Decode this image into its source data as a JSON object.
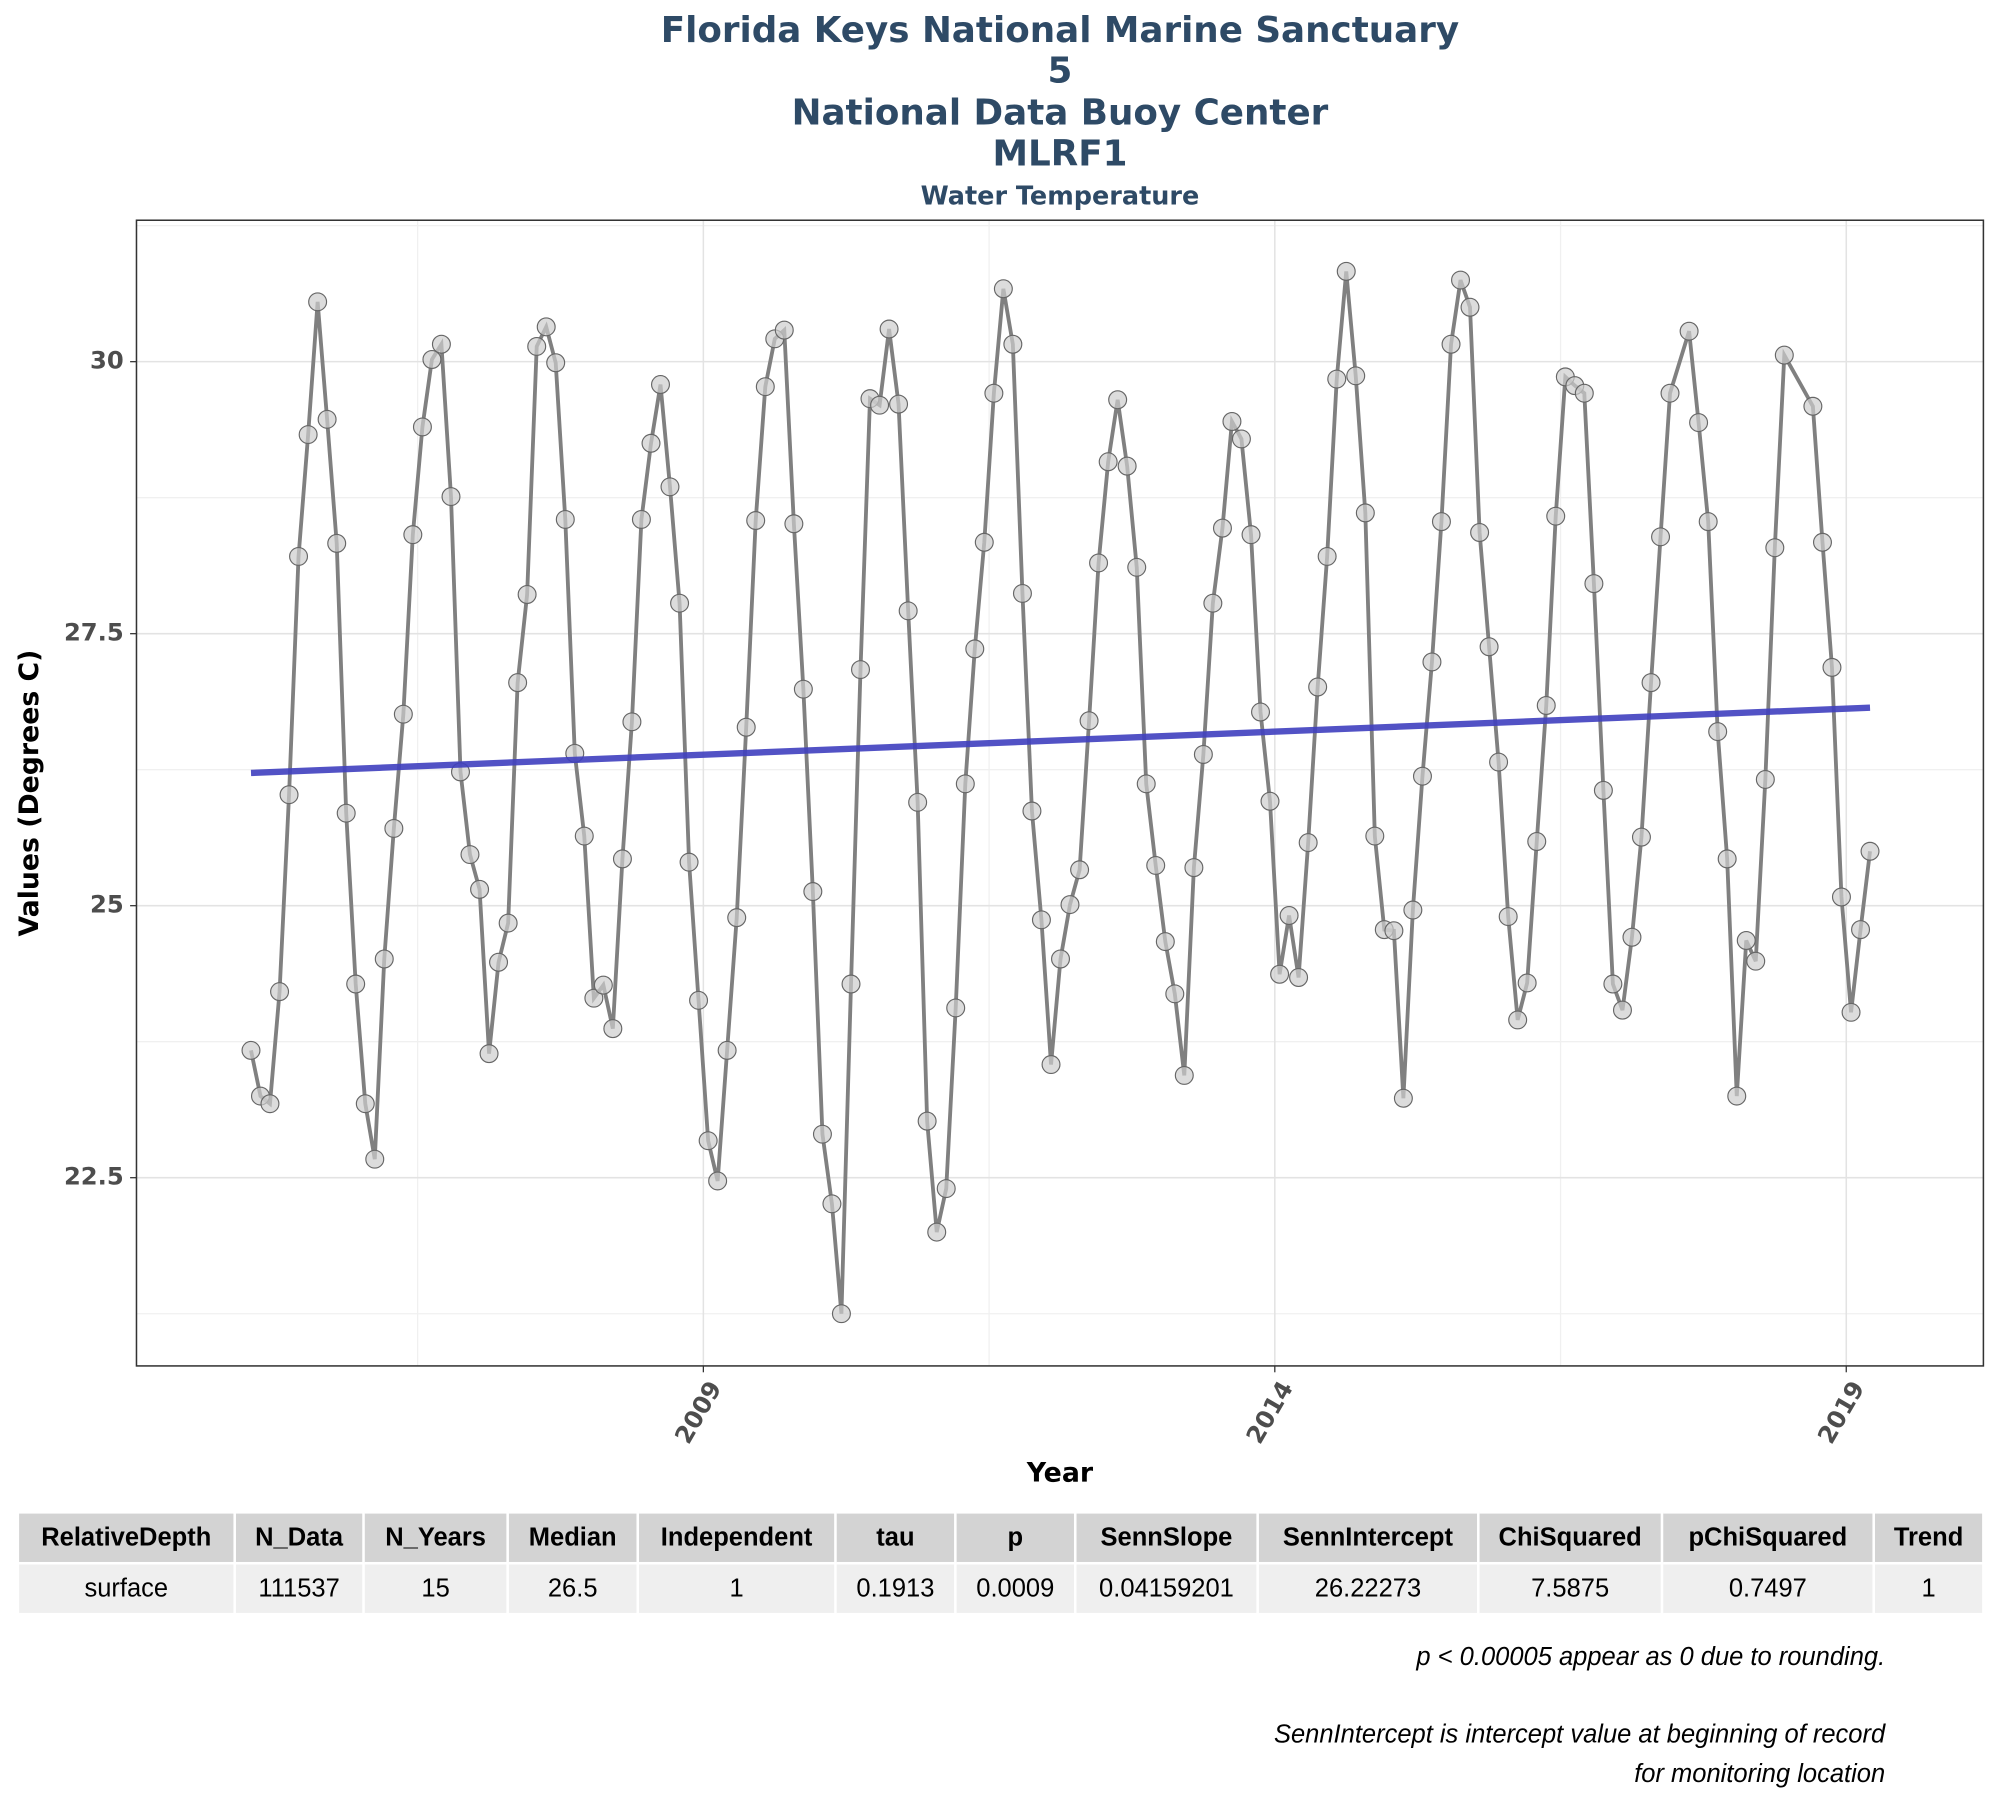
{
  "chart_data": {
    "type": "line",
    "title_lines": [
      "Florida Keys National Marine Sanctuary",
      "5",
      "National Data Buoy Center",
      "MLRF1"
    ],
    "subtitle": "Water Temperature",
    "x_label": "Year",
    "y_label": "Values (Degrees C)",
    "xlim": [
      2004.04,
      2020.2
    ],
    "ylim": [
      20.77,
      31.3
    ],
    "xticks": [
      2009,
      2014,
      2019
    ],
    "yticks": [
      22.5,
      25.0,
      27.5,
      30.0
    ],
    "grid": true,
    "x": [
      2005.042,
      2005.125,
      2005.208,
      2005.292,
      2005.375,
      2005.458,
      2005.542,
      2005.625,
      2005.708,
      2005.792,
      2005.875,
      2005.958,
      2006.042,
      2006.125,
      2006.208,
      2006.292,
      2006.375,
      2006.458,
      2006.542,
      2006.625,
      2006.708,
      2006.792,
      2006.875,
      2006.958,
      2007.042,
      2007.125,
      2007.208,
      2007.292,
      2007.375,
      2007.458,
      2007.542,
      2007.625,
      2007.708,
      2007.792,
      2007.875,
      2007.958,
      2008.042,
      2008.125,
      2008.208,
      2008.292,
      2008.375,
      2008.458,
      2008.542,
      2008.625,
      2008.708,
      2008.792,
      2008.875,
      2008.958,
      2009.042,
      2009.125,
      2009.208,
      2009.292,
      2009.375,
      2009.458,
      2009.542,
      2009.625,
      2009.708,
      2009.792,
      2009.875,
      2009.958,
      2010.042,
      2010.125,
      2010.208,
      2010.292,
      2010.375,
      2010.458,
      2010.542,
      2010.625,
      2010.708,
      2010.792,
      2010.875,
      2010.958,
      2011.042,
      2011.125,
      2011.208,
      2011.292,
      2011.375,
      2011.458,
      2011.542,
      2011.625,
      2011.708,
      2011.792,
      2011.875,
      2011.958,
      2012.042,
      2012.125,
      2012.208,
      2012.292,
      2012.375,
      2012.458,
      2012.542,
      2012.625,
      2012.708,
      2012.792,
      2012.875,
      2012.958,
      2013.042,
      2013.125,
      2013.208,
      2013.292,
      2013.375,
      2013.458,
      2013.542,
      2013.625,
      2013.708,
      2013.792,
      2013.875,
      2013.958,
      2014.042,
      2014.125,
      2014.208,
      2014.292,
      2014.375,
      2014.458,
      2014.542,
      2014.625,
      2014.708,
      2014.792,
      2014.875,
      2014.958,
      2015.042,
      2015.125,
      2015.208,
      2015.292,
      2015.375,
      2015.458,
      2015.542,
      2015.625,
      2015.708,
      2015.792,
      2015.875,
      2015.958,
      2016.042,
      2016.125,
      2016.208,
      2016.292,
      2016.375,
      2016.458,
      2016.542,
      2016.625,
      2016.708,
      2016.792,
      2016.875,
      2016.958,
      2017.042,
      2017.125,
      2017.208,
      2017.292,
      2017.375,
      2017.458,
      2017.625,
      2017.708,
      2017.792,
      2017.875,
      2017.958,
      2018.042,
      2018.125,
      2018.208,
      2018.292,
      2018.375,
      2018.458,
      2018.708,
      2018.792,
      2018.875,
      2018.958,
      2019.042,
      2019.125,
      2019.208
    ],
    "series": [
      {
        "color": "#808080",
        "values": [
          23.67,
          23.25,
          23.18,
          24.21,
          26.02,
          28.21,
          29.33,
          30.55,
          29.47,
          28.33,
          25.85,
          24.28,
          23.18,
          22.67,
          24.51,
          25.71,
          26.76,
          28.41,
          29.4,
          30.02,
          30.16,
          28.76,
          26.23,
          25.47,
          25.15,
          23.64,
          24.48,
          24.84,
          27.05,
          27.86,
          30.14,
          30.32,
          29.99,
          28.55,
          26.4,
          25.64,
          24.15,
          24.27,
          23.87,
          25.43,
          26.69,
          28.55,
          29.25,
          29.79,
          28.85,
          27.78,
          25.4,
          24.13,
          22.84,
          22.47,
          23.67,
          24.89,
          26.64,
          28.54,
          29.77,
          30.21,
          30.29,
          28.51,
          26.99,
          25.13,
          22.9,
          22.26,
          21.25,
          24.28,
          27.17,
          29.66,
          29.6,
          30.3,
          29.61,
          27.71,
          25.95,
          23.02,
          22.0,
          22.4,
          24.06,
          26.12,
          27.36,
          28.34,
          29.71,
          30.67,
          30.16,
          27.87,
          25.87,
          24.87,
          23.54,
          24.51,
          25.01,
          25.33,
          26.7,
          28.15,
          29.08,
          29.65,
          29.04,
          28.11,
          26.12,
          25.37,
          24.67,
          24.19,
          23.44,
          25.35,
          26.39,
          27.78,
          28.47,
          29.45,
          29.29,
          28.41,
          26.78,
          25.96,
          24.37,
          24.91,
          24.34,
          25.58,
          27.01,
          28.21,
          29.84,
          30.83,
          29.87,
          28.61,
          25.64,
          24.78,
          24.77,
          23.23,
          24.96,
          26.19,
          27.24,
          28.53,
          30.16,
          30.75,
          30.5,
          28.43,
          27.38,
          26.32,
          24.9,
          23.95,
          24.29,
          25.59,
          26.84,
          28.58,
          29.86,
          29.78,
          29.71,
          27.96,
          26.06,
          24.28,
          24.04,
          24.71,
          25.63,
          27.05,
          28.39,
          29.71,
          30.28,
          29.44,
          28.53,
          26.6,
          25.43,
          23.25,
          24.68,
          24.49,
          26.16,
          28.29,
          30.06,
          29.59,
          28.34,
          27.19,
          25.08,
          24.02,
          24.78,
          25.5
        ]
      }
    ],
    "trend": {
      "x": [
        2005.042,
        2019.208
      ],
      "values": [
        26.22,
        26.82
      ],
      "color": "#3f3fbf"
    }
  },
  "table": {
    "columns": [
      "RelativeDepth",
      "N_Data",
      "N_Years",
      "Median",
      "Independent",
      "tau",
      "p",
      "SennSlope",
      "SennIntercept",
      "ChiSquared",
      "pChiSquared",
      "Trend"
    ],
    "rows": [
      [
        "surface",
        111537,
        15,
        26.5,
        1,
        0.1913,
        0.0009,
        0.04159201,
        26.22273,
        7.5875,
        0.7497,
        1
      ]
    ]
  },
  "notes": [
    "p < 0.00005 appear as 0 due to rounding.",
    "SennIntercept is intercept value at beginning of record for monitoring location"
  ]
}
